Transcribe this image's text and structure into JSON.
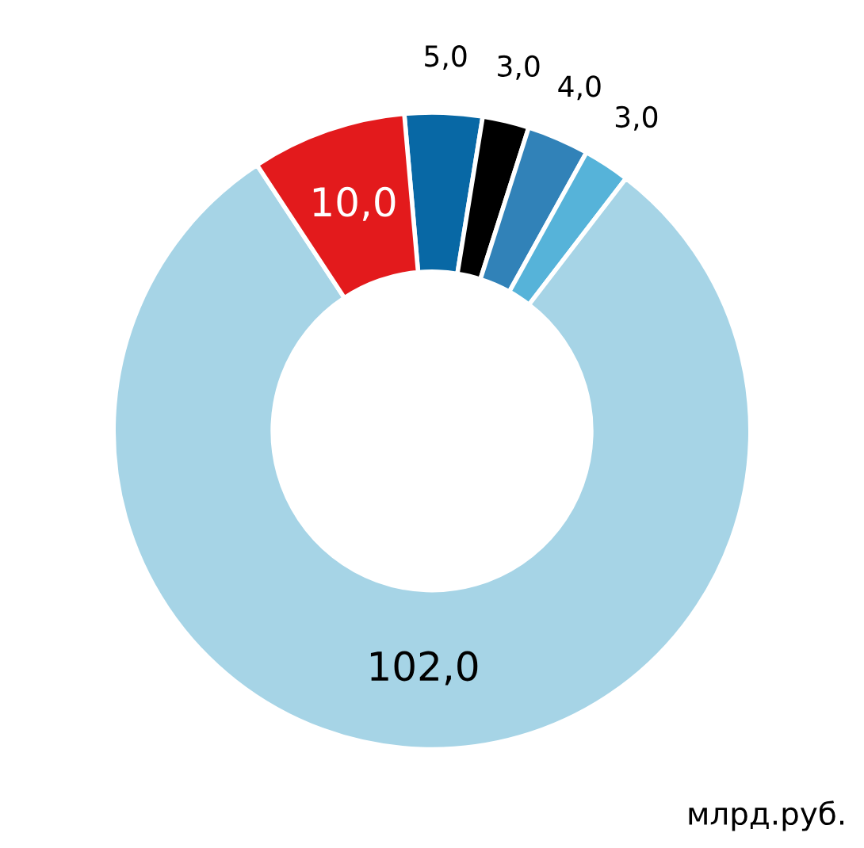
{
  "chart_data": {
    "type": "donut",
    "categories": [
      null,
      null,
      null,
      null,
      null,
      null
    ],
    "values": [
      5.0,
      3.0,
      4.0,
      3.0,
      102.0,
      10.0
    ],
    "value_labels": [
      "5,0",
      "3,0",
      "4,0",
      "3,0",
      "102,0",
      "10,0"
    ],
    "colors": [
      "#0868a5",
      "#000000",
      "#3182b8",
      "#56b3d9",
      "#a6d4e6",
      "#e31a1c"
    ],
    "annotations": [
      "млрд.руб."
    ]
  }
}
